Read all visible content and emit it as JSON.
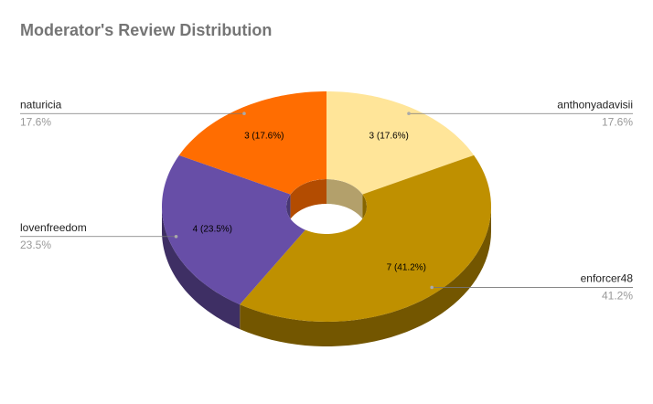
{
  "chart_data": {
    "type": "pie",
    "title": "Moderator's Review Distribution",
    "categories": [
      "anthonyadavisii",
      "enforcer48",
      "lovenfreedom",
      "naturicia"
    ],
    "values": [
      3,
      7,
      4,
      3
    ],
    "value_labels": [
      "3 (17.6%)",
      "7 (41.2%)",
      "4 (23.5%)",
      "3 (17.6%)"
    ],
    "percent_labels": [
      "17.6%",
      "41.2%",
      "23.5%",
      "17.6%"
    ],
    "colors": [
      "#ffe599",
      "#bf9000",
      "#674ea7",
      "#ff6d01"
    ],
    "donut": true,
    "three_d": true
  }
}
